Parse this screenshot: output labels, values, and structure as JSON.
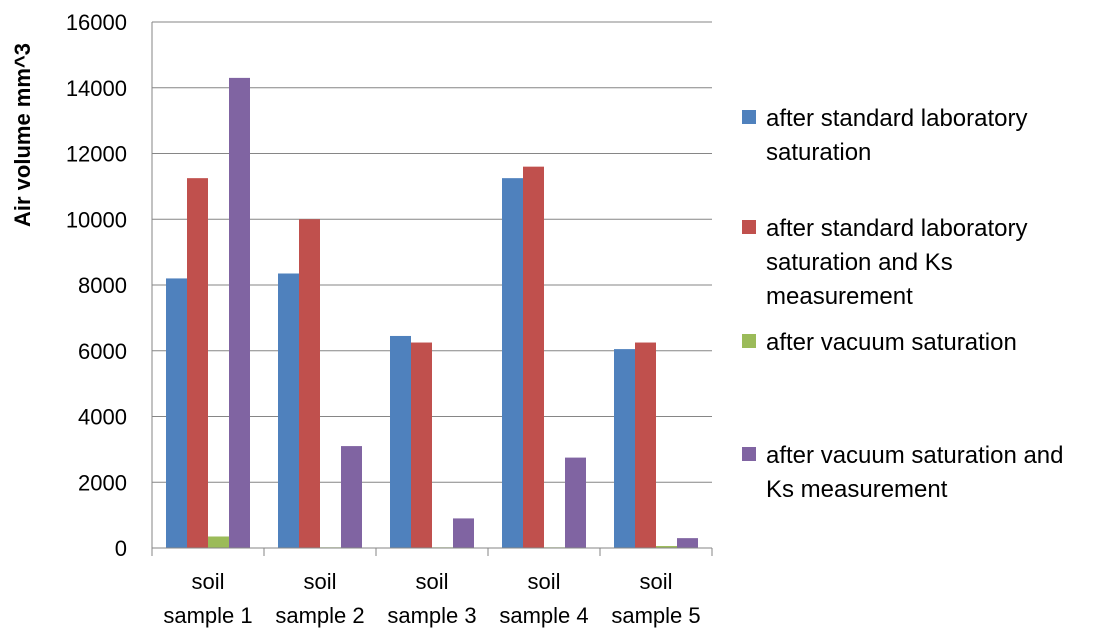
{
  "chart_data": {
    "type": "bar",
    "ylabel": "Air volume mm^3",
    "xlabel": "",
    "ylim": [
      0,
      16000
    ],
    "yticks": [
      0,
      2000,
      4000,
      6000,
      8000,
      10000,
      12000,
      14000,
      16000
    ],
    "grid": true,
    "legend_position": "right",
    "categories": [
      [
        "soil",
        "sample 1"
      ],
      [
        "soil",
        "sample 2"
      ],
      [
        "soil",
        "sample 3"
      ],
      [
        "soil",
        "sample 4"
      ],
      [
        "soil",
        "sample 5"
      ]
    ],
    "series": [
      {
        "name": "after standard laboratory saturation",
        "color": "#4F81BD",
        "values": [
          8200,
          8350,
          6450,
          11250,
          6050
        ]
      },
      {
        "name": "after standard laboratory saturation and Ks measurement",
        "color": "#C0504D",
        "values": [
          11250,
          10000,
          6250,
          11600,
          6250
        ]
      },
      {
        "name": "after vacuum saturation",
        "color": "#9BBB59",
        "values": [
          350,
          20,
          20,
          20,
          60
        ]
      },
      {
        "name": "after vacuum saturation and Ks measurement",
        "color": "#8064A2",
        "values": [
          14300,
          3100,
          900,
          2750,
          300
        ]
      }
    ]
  }
}
